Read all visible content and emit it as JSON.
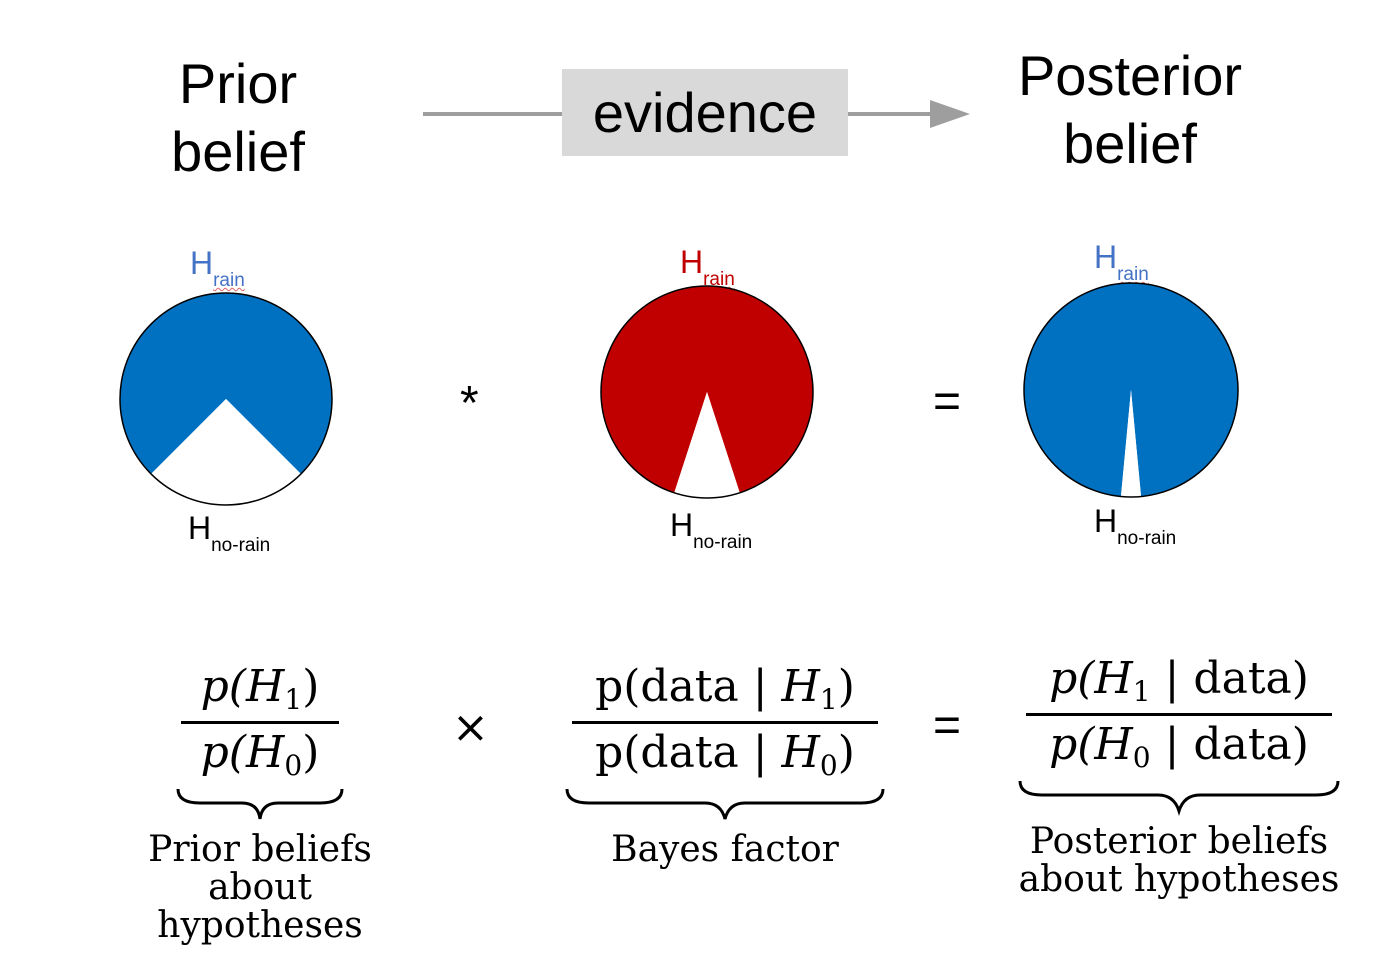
{
  "header": {
    "prior_title": "Prior belief",
    "posterior_title": "Posterior belief",
    "evidence_label": "evidence"
  },
  "pies": [
    {
      "h_main": "H",
      "h_rain_sub": "rain",
      "h_no_rain_sub": "no-rain",
      "color": "#0070c0",
      "label_color": "#4472c4",
      "white_fraction": 0.25
    },
    {
      "h_main": "H",
      "h_rain_sub": "rain",
      "h_no_rain_sub": "no-rain",
      "color": "#c00000",
      "label_color": "#c00000",
      "white_fraction": 0.1
    },
    {
      "h_main": "H",
      "h_rain_sub": "rain",
      "h_no_rain_sub": "no-rain",
      "color": "#0070c0",
      "label_color": "#4472c4",
      "white_fraction": 0.03
    }
  ],
  "operators": {
    "multiply_row1": "*",
    "equals_row1": "=",
    "multiply_row2": "×",
    "equals_row2": "="
  },
  "formulas": {
    "prior": {
      "num_pre": "p(",
      "num_sym": "H",
      "num_sub": "1",
      "num_post": ")",
      "den_pre": "p(",
      "den_sym": "H",
      "den_sub": "0",
      "den_post": ")",
      "caption_1": "Prior beliefs",
      "caption_2": "about hypotheses"
    },
    "bayes": {
      "num_pre": "p(data | ",
      "num_sym": "H",
      "num_sub": "1",
      "num_post": ")",
      "den_pre": "p(data | ",
      "den_sym": "H",
      "den_sub": "0",
      "den_post": ")",
      "caption_1": "Bayes factor",
      "caption_2": ""
    },
    "posterior": {
      "num_pre": "p(",
      "num_sym": "H",
      "num_sub": "1",
      "num_post": " | data)",
      "den_pre": "p(",
      "den_sym": "H",
      "den_sub": "0",
      "den_post": " | data)",
      "caption_1": "Posterior beliefs",
      "caption_2": "about hypotheses"
    }
  }
}
